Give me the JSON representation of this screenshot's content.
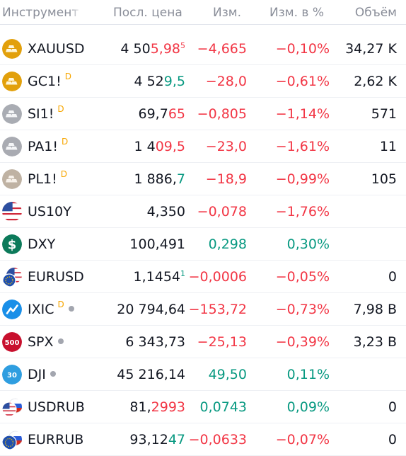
{
  "header": {
    "instrument": "Инструмент",
    "last": "Посл. цена",
    "change": "Изм.",
    "change_pct": "Изм. в %",
    "volume": "Объём"
  },
  "colors": {
    "negative": "#f23645",
    "positive": "#089981",
    "badge": "#f7a600"
  },
  "rows": [
    {
      "symbol": "XAUUSD",
      "icon": "gold-bars-icon",
      "badge": "",
      "dot": false,
      "last_plain": "4 50",
      "last_hl": "5,98",
      "last_sup": "5",
      "hl_color": "red",
      "change": "−4,665",
      "change_pct": "−0,10%",
      "volume": "34,27 K",
      "dir": "neg"
    },
    {
      "symbol": "GC1!",
      "icon": "gold-bars-icon",
      "badge": "D",
      "dot": false,
      "last_plain": "4 52",
      "last_hl": "9,5",
      "last_sup": "",
      "hl_color": "green",
      "change": "−28,0",
      "change_pct": "−0,61%",
      "volume": "2,62 K",
      "dir": "neg"
    },
    {
      "symbol": "SI1!",
      "icon": "silver-bars-icon",
      "badge": "D",
      "dot": false,
      "last_plain": "69,7",
      "last_hl": "65",
      "last_sup": "",
      "hl_color": "red",
      "change": "−0,805",
      "change_pct": "−1,14%",
      "volume": "571",
      "dir": "neg"
    },
    {
      "symbol": "PA1!",
      "icon": "palladium-bars-icon",
      "badge": "D",
      "dot": false,
      "last_plain": "1 4",
      "last_hl": "09,5",
      "last_sup": "",
      "hl_color": "red",
      "change": "−23,0",
      "change_pct": "−1,61%",
      "volume": "11",
      "dir": "neg"
    },
    {
      "symbol": "PL1!",
      "icon": "platinum-bars-icon",
      "badge": "D",
      "dot": false,
      "last_plain": "1 886,",
      "last_hl": "7",
      "last_sup": "",
      "hl_color": "green",
      "change": "−18,9",
      "change_pct": "−0,99%",
      "volume": "105",
      "dir": "neg"
    },
    {
      "symbol": "US10Y",
      "icon": "us-flag-icon",
      "badge": "",
      "dot": false,
      "last_plain": "4,350",
      "last_hl": "",
      "last_sup": "",
      "hl_color": "",
      "change": "−0,078",
      "change_pct": "−1,76%",
      "volume": "",
      "dir": "neg"
    },
    {
      "symbol": "DXY",
      "icon": "dollar-icon",
      "badge": "",
      "dot": false,
      "last_plain": "100,491",
      "last_hl": "",
      "last_sup": "",
      "hl_color": "",
      "change": "0,298",
      "change_pct": "0,30%",
      "volume": "",
      "dir": "pos"
    },
    {
      "symbol": "EURUSD",
      "icon": "eu-us-flags-icon",
      "badge": "",
      "dot": false,
      "last_plain": "1,1454",
      "last_hl": "",
      "last_sup": "1",
      "hl_color": "green",
      "change": "−0,0006",
      "change_pct": "−0,05%",
      "volume": "0",
      "dir": "neg"
    },
    {
      "symbol": "IXIC",
      "icon": "nasdaq-icon",
      "badge": "D",
      "dot": true,
      "last_plain": "20 794,64",
      "last_hl": "",
      "last_sup": "",
      "hl_color": "",
      "change": "−153,72",
      "change_pct": "−0,73%",
      "volume": "7,98 B",
      "dir": "neg"
    },
    {
      "symbol": "SPX",
      "icon": "sp500-icon",
      "badge": "",
      "dot": true,
      "last_plain": "6 343,73",
      "last_hl": "",
      "last_sup": "",
      "hl_color": "",
      "change": "−25,13",
      "change_pct": "−0,39%",
      "volume": "3,23 B",
      "dir": "neg"
    },
    {
      "symbol": "DJI",
      "icon": "dow30-icon",
      "badge": "",
      "dot": true,
      "last_plain": "45 216,14",
      "last_hl": "",
      "last_sup": "",
      "hl_color": "",
      "change": "49,50",
      "change_pct": "0,11%",
      "volume": "",
      "dir": "pos"
    },
    {
      "symbol": "USDRUB",
      "icon": "us-ru-flags-icon",
      "badge": "",
      "dot": false,
      "last_plain": "81,",
      "last_hl": "2993",
      "last_sup": "",
      "hl_color": "red",
      "change": "0,0743",
      "change_pct": "0,09%",
      "volume": "0",
      "dir": "pos"
    },
    {
      "symbol": "EURRUB",
      "icon": "eu-ru-flags-icon",
      "badge": "",
      "dot": false,
      "last_plain": "93,12",
      "last_hl": "47",
      "last_sup": "",
      "hl_color": "green",
      "change": "−0,0633",
      "change_pct": "−0,07%",
      "volume": "0",
      "dir": "neg"
    }
  ],
  "icon_labels": {
    "sp500": "500",
    "dow30": "30"
  }
}
